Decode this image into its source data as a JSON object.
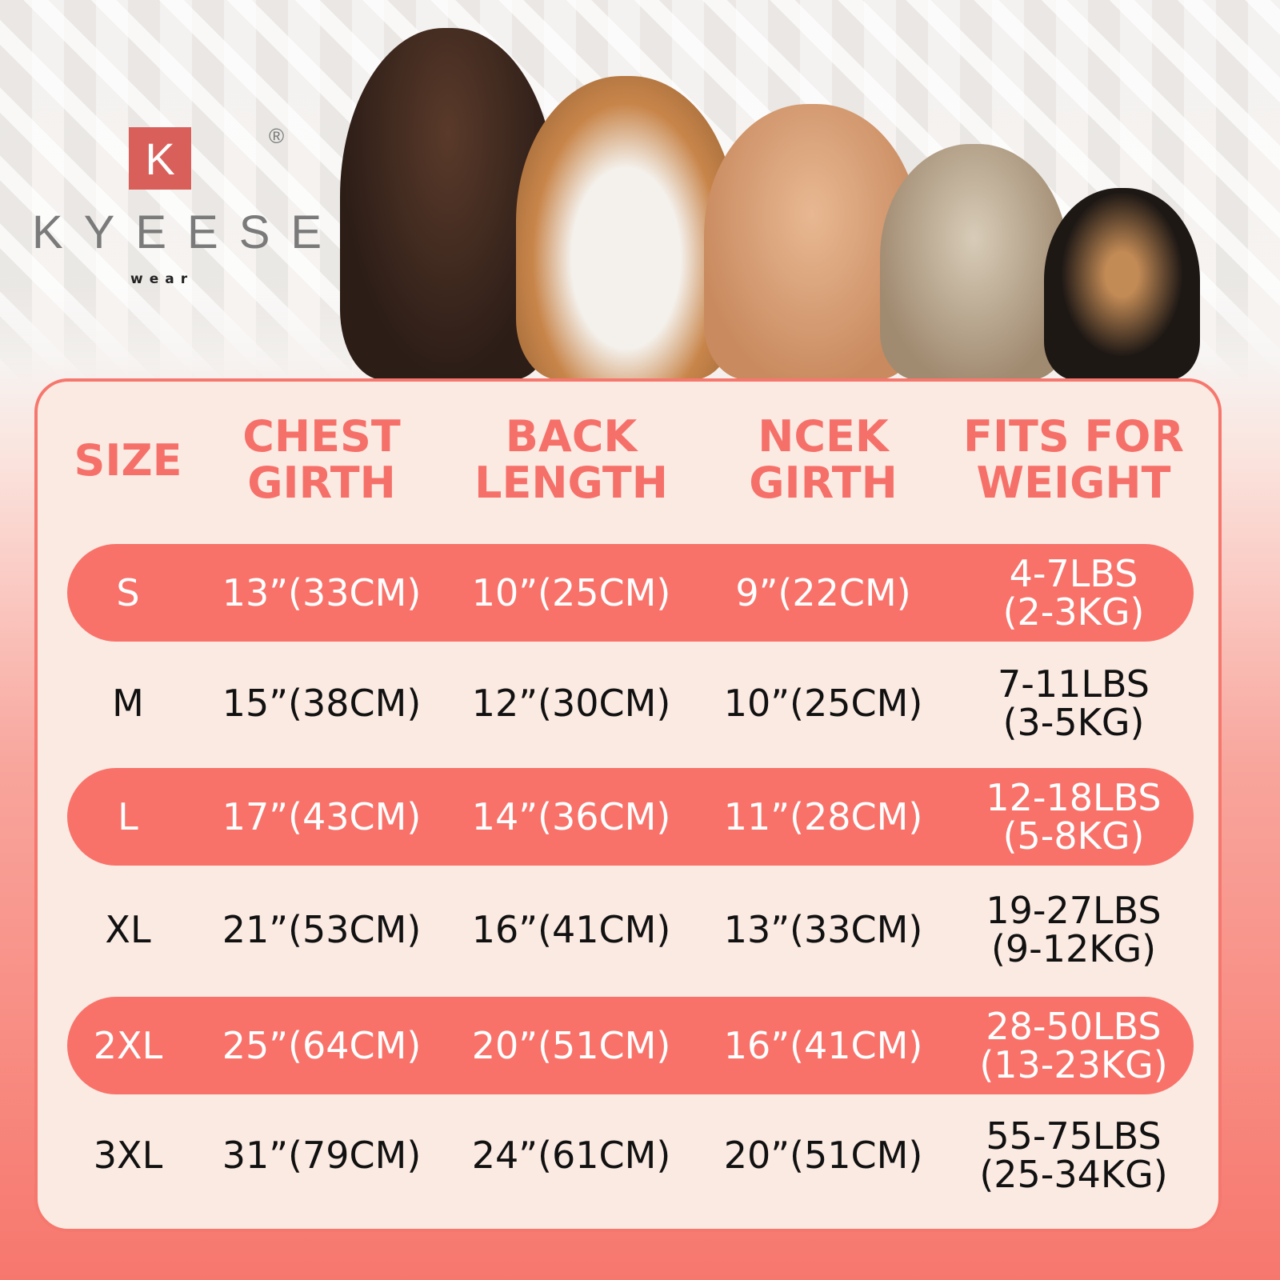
{
  "brand": {
    "mark": "K",
    "name": "KYEESE",
    "sub": "wear",
    "registered": "®"
  },
  "colors": {
    "accent": "#F8726A",
    "card": "#FBEAE2"
  },
  "table": {
    "headers": [
      "SIZE",
      "CHEST\nGIRTH",
      "BACK\nLENGTH",
      "NCEK\nGIRTH",
      "FITS FOR\nWEIGHT"
    ],
    "rows": [
      {
        "size": "S",
        "chest": "13”(33CM)",
        "back": "10”(25CM)",
        "neck": "9”(22CM)",
        "weight_lbs": "4-7LBS",
        "weight_kg": "(2-3KG)",
        "highlighted": true
      },
      {
        "size": "M",
        "chest": "15”(38CM)",
        "back": "12”(30CM)",
        "neck": "10”(25CM)",
        "weight_lbs": "7-11LBS",
        "weight_kg": "(3-5KG)",
        "highlighted": false
      },
      {
        "size": "L",
        "chest": "17”(43CM)",
        "back": "14”(36CM)",
        "neck": "11”(28CM)",
        "weight_lbs": "12-18LBS",
        "weight_kg": "(5-8KG)",
        "highlighted": true
      },
      {
        "size": "XL",
        "chest": "21”(53CM)",
        "back": "16”(41CM)",
        "neck": "13”(33CM)",
        "weight_lbs": "19-27LBS",
        "weight_kg": "(9-12KG)",
        "highlighted": false
      },
      {
        "size": "2XL",
        "chest": "25”(64CM)",
        "back": "20”(51CM)",
        "neck": "16”(41CM)",
        "weight_lbs": "28-50LBS",
        "weight_kg": "(13-23KG)",
        "highlighted": true
      },
      {
        "size": "3XL",
        "chest": "31”(79CM)",
        "back": "24”(61CM)",
        "neck": "20”(51CM)",
        "weight_lbs": "55-75LBS",
        "weight_kg": "(25-34KG)",
        "highlighted": false
      }
    ]
  }
}
